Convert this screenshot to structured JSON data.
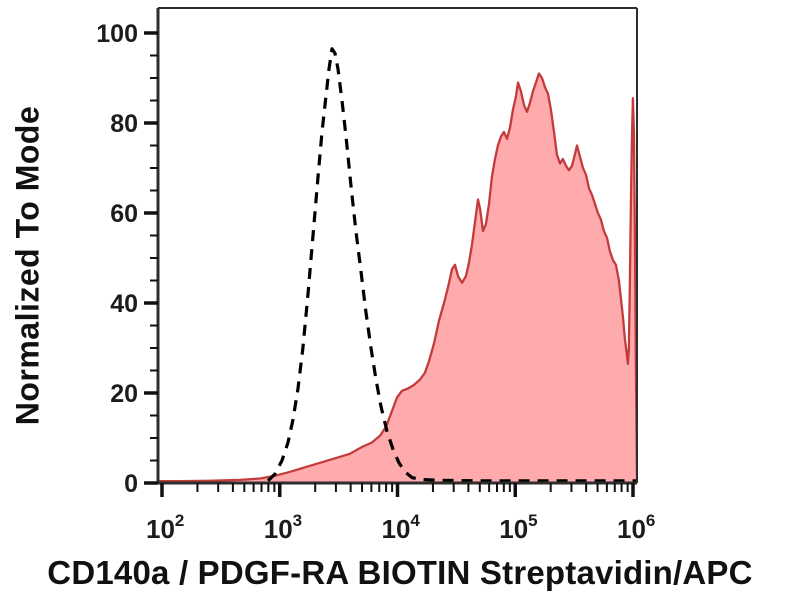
{
  "chart_data": {
    "type": "area",
    "subtype": "flow-cytometry-histogram-overlay",
    "title": "",
    "xlabel": "CD140a / PDGF-RA BIOTIN Streptavidin/APC",
    "ylabel": "Normalized To Mode",
    "x_scale": "log10",
    "xlim_log10": [
      1.966,
      6.034
    ],
    "ylim": [
      0,
      105
    ],
    "grid": false,
    "legend": "none",
    "x_major_ticks": [
      {
        "base": "10",
        "exp": "2",
        "log10": 2
      },
      {
        "base": "10",
        "exp": "3",
        "log10": 3
      },
      {
        "base": "10",
        "exp": "4",
        "log10": 4
      },
      {
        "base": "10",
        "exp": "5",
        "log10": 5
      },
      {
        "base": "10",
        "exp": "6",
        "log10": 6
      }
    ],
    "y_ticks": [
      0,
      20,
      40,
      60,
      80,
      100
    ],
    "y_minor_step": 5,
    "colors": {
      "dashed_line": "#000000",
      "stained_line": "#c43b3b",
      "stained_fill": "#ffabae",
      "axis": "#2e2e2e",
      "tick": "#111111",
      "text": "#1c1c1c"
    },
    "series": [
      {
        "name": "negative-control-dashed",
        "style": "dashed",
        "points": [
          [
            2.9,
            0.5
          ],
          [
            2.96,
            2
          ],
          [
            3.019,
            5
          ],
          [
            3.07,
            9
          ],
          [
            3.112,
            14
          ],
          [
            3.155,
            21
          ],
          [
            3.197,
            30
          ],
          [
            3.24,
            42
          ],
          [
            3.282,
            55
          ],
          [
            3.325,
            68
          ],
          [
            3.359,
            78
          ],
          [
            3.393,
            86
          ],
          [
            3.418,
            92
          ],
          [
            3.444,
            96.5
          ],
          [
            3.469,
            95.5
          ],
          [
            3.495,
            92
          ],
          [
            3.529,
            85
          ],
          [
            3.563,
            77
          ],
          [
            3.605,
            66
          ],
          [
            3.647,
            56
          ],
          [
            3.69,
            47
          ],
          [
            3.732,
            38
          ],
          [
            3.775,
            30
          ],
          [
            3.817,
            23
          ],
          [
            3.86,
            17
          ],
          [
            3.911,
            11.5
          ],
          [
            3.962,
            7.5
          ],
          [
            4.013,
            4.5
          ],
          [
            4.064,
            2.5
          ],
          [
            4.123,
            1.2
          ],
          [
            4.191,
            0.8
          ],
          [
            4.361,
            0.6
          ],
          [
            4.7,
            0.5
          ],
          [
            5.04,
            0.5
          ],
          [
            5.38,
            0.5
          ],
          [
            5.72,
            0.5
          ],
          [
            6.0,
            0.5
          ],
          [
            6.034,
            0.5
          ]
        ]
      },
      {
        "name": "cd140a-apc-stained-filled",
        "style": "filled",
        "points": [
          [
            1.966,
            0.4
          ],
          [
            2.153,
            0.4
          ],
          [
            2.408,
            0.5
          ],
          [
            2.662,
            0.7
          ],
          [
            2.832,
            1.0
          ],
          [
            2.96,
            1.6
          ],
          [
            3.087,
            2.5
          ],
          [
            3.214,
            3.5
          ],
          [
            3.342,
            4.5
          ],
          [
            3.469,
            5.5
          ],
          [
            3.596,
            6.5
          ],
          [
            3.698,
            8
          ],
          [
            3.783,
            9
          ],
          [
            3.851,
            10.5
          ],
          [
            3.902,
            12.5
          ],
          [
            3.953,
            16
          ],
          [
            3.996,
            19
          ],
          [
            4.038,
            20.5
          ],
          [
            4.089,
            21
          ],
          [
            4.14,
            21.8
          ],
          [
            4.191,
            23
          ],
          [
            4.233,
            24.5
          ],
          [
            4.267,
            27
          ],
          [
            4.31,
            31
          ],
          [
            4.352,
            36
          ],
          [
            4.395,
            40
          ],
          [
            4.429,
            43.5
          ],
          [
            4.463,
            47.5
          ],
          [
            4.488,
            48.5
          ],
          [
            4.514,
            46
          ],
          [
            4.548,
            44.5
          ],
          [
            4.582,
            46
          ],
          [
            4.607,
            49
          ],
          [
            4.633,
            53
          ],
          [
            4.658,
            58
          ],
          [
            4.684,
            63
          ],
          [
            4.701,
            61
          ],
          [
            4.726,
            56
          ],
          [
            4.751,
            57.5
          ],
          [
            4.777,
            62
          ],
          [
            4.802,
            68
          ],
          [
            4.828,
            72
          ],
          [
            4.853,
            75
          ],
          [
            4.879,
            77
          ],
          [
            4.904,
            78
          ],
          [
            4.93,
            76.5
          ],
          [
            4.955,
            79
          ],
          [
            4.981,
            83
          ],
          [
            5.006,
            86
          ],
          [
            5.023,
            89
          ],
          [
            5.049,
            87
          ],
          [
            5.074,
            84
          ],
          [
            5.1,
            82.5
          ],
          [
            5.125,
            84.5
          ],
          [
            5.15,
            87
          ],
          [
            5.176,
            89
          ],
          [
            5.201,
            91
          ],
          [
            5.227,
            90
          ],
          [
            5.252,
            88
          ],
          [
            5.278,
            86.5
          ],
          [
            5.303,
            83
          ],
          [
            5.329,
            78
          ],
          [
            5.354,
            73
          ],
          [
            5.38,
            71
          ],
          [
            5.405,
            72
          ],
          [
            5.431,
            70.5
          ],
          [
            5.456,
            69.5
          ],
          [
            5.482,
            70.5
          ],
          [
            5.507,
            73
          ],
          [
            5.524,
            75
          ],
          [
            5.55,
            72.5
          ],
          [
            5.575,
            70
          ],
          [
            5.601,
            68.5
          ],
          [
            5.626,
            65.5
          ],
          [
            5.652,
            64
          ],
          [
            5.677,
            62
          ],
          [
            5.702,
            60
          ],
          [
            5.728,
            58.5
          ],
          [
            5.753,
            56
          ],
          [
            5.779,
            54.5
          ],
          [
            5.804,
            51.5
          ],
          [
            5.83,
            49.5
          ],
          [
            5.855,
            48.5
          ],
          [
            5.88,
            45
          ],
          [
            5.897,
            41
          ],
          [
            5.914,
            37
          ],
          [
            5.931,
            32
          ],
          [
            5.948,
            28.5
          ],
          [
            5.957,
            26.5
          ],
          [
            5.965,
            30
          ],
          [
            5.974,
            45
          ],
          [
            5.982,
            62
          ],
          [
            5.991,
            76
          ],
          [
            5.999,
            85.5
          ],
          [
            6.008,
            78
          ],
          [
            6.016,
            55
          ],
          [
            6.025,
            25
          ],
          [
            6.034,
            0.5
          ]
        ]
      }
    ]
  }
}
